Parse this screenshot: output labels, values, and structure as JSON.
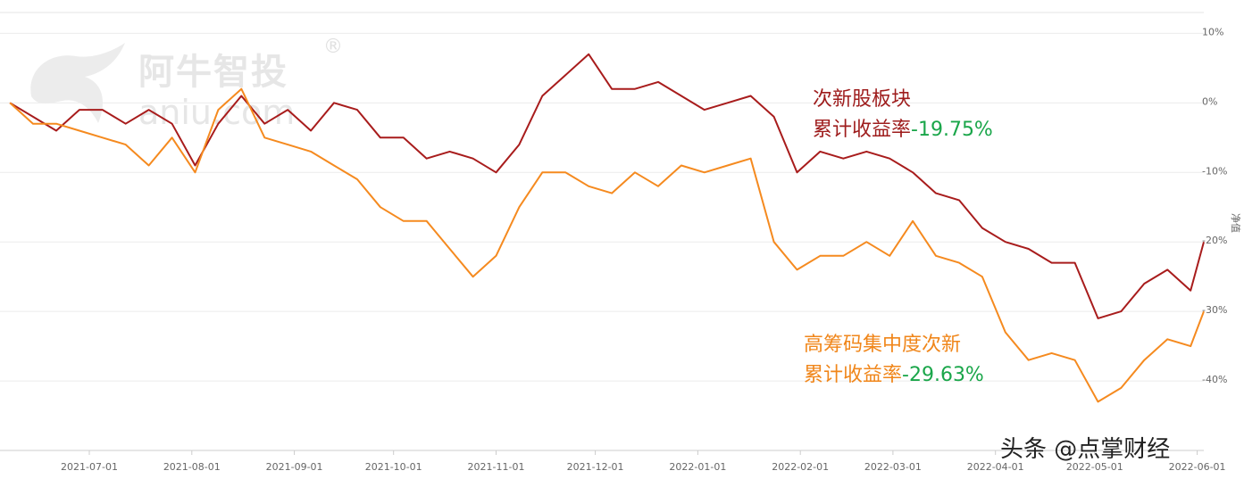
{
  "watermark": {
    "brand": "阿牛智投",
    "domain": "aniu.com",
    "reg_mark": "®"
  },
  "annotations": {
    "series1_name": "次新股板块",
    "series1_return_label": "累计收益率",
    "series1_return_value": "-19.75%",
    "series2_name": "高筹码集中度次新",
    "series2_return_label": "累计收益率",
    "series2_return_value": "-29.63%"
  },
  "source_credit": "头条 @点掌财经",
  "colors": {
    "series1": "#a81c1c",
    "series2": "#f58a1f",
    "return_value": "#1aa64a"
  },
  "chart_data": {
    "type": "line",
    "title": "",
    "xlabel": "",
    "ylabel": "净值",
    "ylim": [
      -50,
      13
    ],
    "x_ticks": [
      "2021-07-01",
      "2021-08-01",
      "2021-09-01",
      "2021-10-01",
      "2021-11-01",
      "2021-12-01",
      "2022-01-01",
      "2022-02-01",
      "2022-03-01",
      "2022-04-01",
      "2022-05-01",
      "2022-06-01"
    ],
    "y_ticks": [
      10,
      0,
      -10,
      -20,
      -30,
      -40
    ],
    "y_tick_labels": [
      "10%",
      "0%",
      "-10%",
      "-20%",
      "-30%",
      "-40%"
    ],
    "grid": "horizontal",
    "series": [
      {
        "name": "次新股板块",
        "x": [
          "2021-06-07",
          "2021-06-14",
          "2021-06-21",
          "2021-06-28",
          "2021-07-05",
          "2021-07-12",
          "2021-07-19",
          "2021-07-26",
          "2021-08-02",
          "2021-08-09",
          "2021-08-16",
          "2021-08-23",
          "2021-08-30",
          "2021-09-06",
          "2021-09-13",
          "2021-09-20",
          "2021-09-27",
          "2021-10-04",
          "2021-10-11",
          "2021-10-18",
          "2021-10-25",
          "2021-11-01",
          "2021-11-08",
          "2021-11-15",
          "2021-11-22",
          "2021-11-29",
          "2021-12-06",
          "2021-12-13",
          "2021-12-20",
          "2021-12-27",
          "2022-01-03",
          "2022-01-10",
          "2022-01-17",
          "2022-01-24",
          "2022-01-31",
          "2022-02-07",
          "2022-02-14",
          "2022-02-21",
          "2022-02-28",
          "2022-03-07",
          "2022-03-14",
          "2022-03-21",
          "2022-03-28",
          "2022-04-04",
          "2022-04-11",
          "2022-04-18",
          "2022-04-25",
          "2022-05-02",
          "2022-05-09",
          "2022-05-16",
          "2022-05-23",
          "2022-05-30",
          "2022-06-03"
        ],
        "values": [
          0,
          -2,
          -4,
          -1,
          -1,
          -3,
          -1,
          -3,
          -9,
          -3,
          1,
          -3,
          -1,
          -4,
          0,
          -1,
          -5,
          -5,
          -8,
          -7,
          -8,
          -10,
          -6,
          1,
          4,
          7,
          2,
          2,
          3,
          1,
          -1,
          0,
          1,
          -2,
          -10,
          -7,
          -8,
          -7,
          -8,
          -10,
          -13,
          -14,
          -18,
          -20,
          -21,
          -23,
          -23,
          -31,
          -30,
          -26,
          -24,
          -27,
          -20
        ]
      },
      {
        "name": "高筹码集中度次新",
        "x": [
          "2021-06-07",
          "2021-06-14",
          "2021-06-21",
          "2021-06-28",
          "2021-07-05",
          "2021-07-12",
          "2021-07-19",
          "2021-07-26",
          "2021-08-02",
          "2021-08-09",
          "2021-08-16",
          "2021-08-23",
          "2021-08-30",
          "2021-09-06",
          "2021-09-13",
          "2021-09-20",
          "2021-09-27",
          "2021-10-04",
          "2021-10-11",
          "2021-10-18",
          "2021-10-25",
          "2021-11-01",
          "2021-11-08",
          "2021-11-15",
          "2021-11-22",
          "2021-11-29",
          "2021-12-06",
          "2021-12-13",
          "2021-12-20",
          "2021-12-27",
          "2022-01-03",
          "2022-01-10",
          "2022-01-17",
          "2022-01-24",
          "2022-01-31",
          "2022-02-07",
          "2022-02-14",
          "2022-02-21",
          "2022-02-28",
          "2022-03-07",
          "2022-03-14",
          "2022-03-21",
          "2022-03-28",
          "2022-04-04",
          "2022-04-11",
          "2022-04-18",
          "2022-04-25",
          "2022-05-02",
          "2022-05-09",
          "2022-05-16",
          "2022-05-23",
          "2022-05-30",
          "2022-06-03"
        ],
        "values": [
          0,
          -3,
          -3,
          -4,
          -5,
          -6,
          -9,
          -5,
          -10,
          -1,
          2,
          -5,
          -6,
          -7,
          -9,
          -11,
          -15,
          -17,
          -17,
          -21,
          -25,
          -22,
          -15,
          -10,
          -10,
          -12,
          -13,
          -10,
          -12,
          -9,
          -10,
          -9,
          -8,
          -20,
          -24,
          -22,
          -22,
          -20,
          -22,
          -17,
          -22,
          -23,
          -25,
          -33,
          -37,
          -36,
          -37,
          -43,
          -41,
          -37,
          -34,
          -35,
          -30
        ]
      }
    ]
  }
}
